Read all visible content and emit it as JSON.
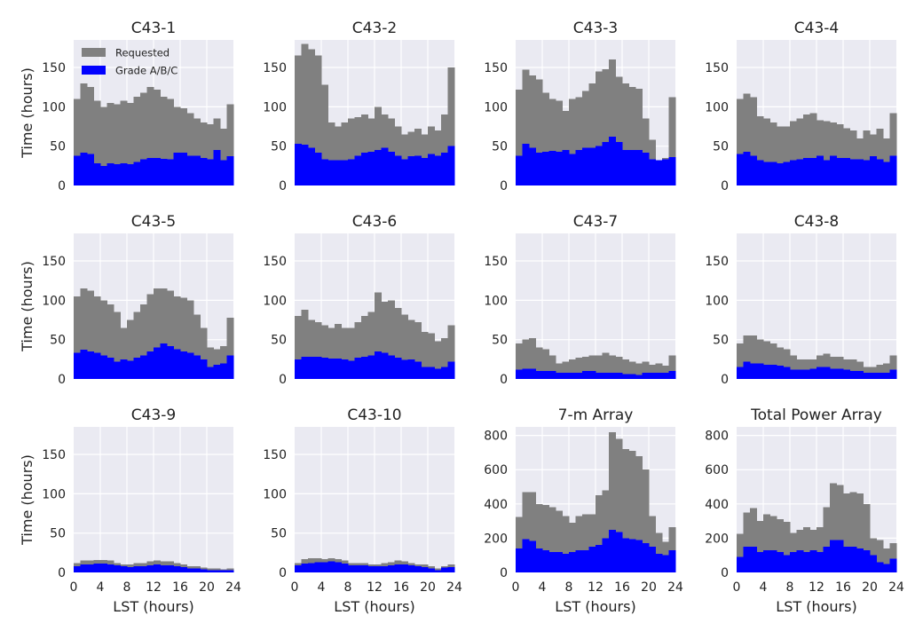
{
  "colors": {
    "requested": "#808080",
    "granted": "#0000ff",
    "axes_bg": "#eaeaf2",
    "grid": "#ffffff"
  },
  "chart_data": [
    {
      "type": "bar",
      "title": "C43-1",
      "ylabel": "Time (hours)",
      "xlabel": "",
      "ylim": [
        0,
        185
      ],
      "xlim": [
        0,
        24
      ],
      "bin_hours": 1,
      "yticks": [
        "0",
        "50",
        "100",
        "150"
      ],
      "xticks": [],
      "grid": true,
      "stacked": "overlay",
      "legend": {
        "placement": "top-left",
        "entries": [
          "Requested",
          "Grade A/B/C"
        ]
      },
      "series": [
        {
          "name": "Requested",
          "values": [
            110,
            130,
            125,
            108,
            100,
            105,
            103,
            108,
            105,
            113,
            118,
            125,
            122,
            113,
            110,
            100,
            98,
            92,
            85,
            80,
            78,
            85,
            72,
            103
          ]
        },
        {
          "name": "Grade A/B/C",
          "values": [
            38,
            42,
            40,
            28,
            25,
            28,
            27,
            28,
            27,
            30,
            33,
            35,
            35,
            34,
            33,
            42,
            42,
            38,
            38,
            35,
            33,
            45,
            32,
            37
          ]
        }
      ]
    },
    {
      "type": "bar",
      "title": "C43-2",
      "ylabel": "",
      "xlabel": "",
      "ylim": [
        0,
        185
      ],
      "xlim": [
        0,
        24
      ],
      "bin_hours": 1,
      "yticks": [
        "0",
        "50",
        "100",
        "150"
      ],
      "xticks": [],
      "grid": true,
      "stacked": "overlay",
      "legend": null,
      "series": [
        {
          "name": "Requested",
          "values": [
            165,
            180,
            173,
            165,
            128,
            80,
            75,
            80,
            85,
            87,
            90,
            85,
            100,
            90,
            85,
            75,
            65,
            68,
            72,
            65,
            75,
            70,
            90,
            150
          ]
        },
        {
          "name": "Grade A/B/C",
          "values": [
            53,
            52,
            48,
            42,
            33,
            32,
            32,
            32,
            33,
            38,
            42,
            43,
            45,
            48,
            43,
            38,
            33,
            37,
            38,
            35,
            40,
            38,
            42,
            50
          ]
        }
      ]
    },
    {
      "type": "bar",
      "title": "C43-3",
      "ylabel": "",
      "xlabel": "",
      "ylim": [
        0,
        185
      ],
      "xlim": [
        0,
        24
      ],
      "bin_hours": 1,
      "yticks": [
        "0",
        "50",
        "100",
        "150"
      ],
      "xticks": [],
      "grid": true,
      "stacked": "overlay",
      "legend": null,
      "series": [
        {
          "name": "Requested",
          "values": [
            122,
            147,
            140,
            135,
            118,
            110,
            108,
            95,
            110,
            112,
            120,
            130,
            145,
            148,
            160,
            138,
            130,
            125,
            123,
            85,
            58,
            25,
            35,
            112
          ]
        },
        {
          "name": "Grade A/B/C",
          "values": [
            38,
            53,
            48,
            42,
            43,
            44,
            43,
            45,
            40,
            45,
            48,
            48,
            50,
            55,
            62,
            55,
            45,
            45,
            45,
            42,
            33,
            32,
            33,
            36
          ]
        }
      ]
    },
    {
      "type": "bar",
      "title": "C43-4",
      "ylabel": "",
      "xlabel": "",
      "ylim": [
        0,
        185
      ],
      "xlim": [
        0,
        24
      ],
      "bin_hours": 1,
      "yticks": [
        "0",
        "50",
        "100",
        "150"
      ],
      "xticks": [],
      "grid": true,
      "stacked": "overlay",
      "legend": null,
      "series": [
        {
          "name": "Requested",
          "values": [
            110,
            117,
            112,
            88,
            85,
            80,
            75,
            75,
            82,
            85,
            90,
            92,
            83,
            82,
            80,
            78,
            73,
            70,
            60,
            70,
            65,
            72,
            60,
            92
          ]
        },
        {
          "name": "Grade A/B/C",
          "values": [
            40,
            43,
            38,
            32,
            30,
            30,
            28,
            30,
            32,
            33,
            35,
            35,
            38,
            32,
            38,
            35,
            35,
            33,
            33,
            32,
            37,
            33,
            30,
            38
          ]
        }
      ]
    },
    {
      "type": "bar",
      "title": "C43-5",
      "ylabel": "Time (hours)",
      "xlabel": "",
      "ylim": [
        0,
        185
      ],
      "xlim": [
        0,
        24
      ],
      "bin_hours": 1,
      "yticks": [
        "0",
        "50",
        "100",
        "150"
      ],
      "xticks": [],
      "grid": true,
      "stacked": "overlay",
      "legend": null,
      "series": [
        {
          "name": "Requested",
          "values": [
            105,
            115,
            112,
            105,
            100,
            95,
            85,
            65,
            75,
            85,
            95,
            108,
            115,
            115,
            112,
            105,
            103,
            100,
            82,
            65,
            40,
            38,
            42,
            78
          ]
        },
        {
          "name": "Grade A/B/C",
          "values": [
            33,
            37,
            35,
            33,
            30,
            27,
            22,
            25,
            23,
            27,
            30,
            35,
            40,
            45,
            42,
            38,
            35,
            33,
            30,
            25,
            15,
            18,
            20,
            30
          ]
        }
      ]
    },
    {
      "type": "bar",
      "title": "C43-6",
      "ylabel": "",
      "xlabel": "",
      "ylim": [
        0,
        185
      ],
      "xlim": [
        0,
        24
      ],
      "bin_hours": 1,
      "yticks": [
        "0",
        "50",
        "100",
        "150"
      ],
      "xticks": [],
      "grid": true,
      "stacked": "overlay",
      "legend": null,
      "series": [
        {
          "name": "Requested",
          "values": [
            80,
            88,
            75,
            72,
            68,
            65,
            70,
            65,
            65,
            72,
            80,
            85,
            110,
            98,
            100,
            90,
            82,
            75,
            72,
            60,
            58,
            48,
            52,
            68
          ]
        },
        {
          "name": "Grade A/B/C",
          "values": [
            25,
            28,
            28,
            28,
            27,
            26,
            26,
            25,
            23,
            27,
            28,
            30,
            35,
            33,
            30,
            27,
            24,
            25,
            22,
            15,
            15,
            13,
            15,
            22
          ]
        }
      ]
    },
    {
      "type": "bar",
      "title": "C43-7",
      "ylabel": "",
      "xlabel": "",
      "ylim": [
        0,
        185
      ],
      "xlim": [
        0,
        24
      ],
      "bin_hours": 1,
      "yticks": [
        "0",
        "50",
        "100",
        "150"
      ],
      "xticks": [],
      "grid": true,
      "stacked": "overlay",
      "legend": null,
      "series": [
        {
          "name": "Requested",
          "values": [
            45,
            50,
            52,
            40,
            38,
            30,
            20,
            22,
            25,
            27,
            28,
            30,
            30,
            33,
            30,
            28,
            25,
            22,
            20,
            22,
            18,
            20,
            17,
            30
          ]
        },
        {
          "name": "Grade A/B/C",
          "values": [
            12,
            13,
            13,
            10,
            10,
            10,
            8,
            8,
            8,
            8,
            10,
            10,
            8,
            8,
            8,
            8,
            6,
            6,
            5,
            8,
            8,
            8,
            8,
            10
          ]
        }
      ]
    },
    {
      "type": "bar",
      "title": "C43-8",
      "ylabel": "",
      "xlabel": "",
      "ylim": [
        0,
        185
      ],
      "xlim": [
        0,
        24
      ],
      "bin_hours": 1,
      "yticks": [
        "0",
        "50",
        "100",
        "150"
      ],
      "xticks": [],
      "grid": true,
      "stacked": "overlay",
      "legend": null,
      "series": [
        {
          "name": "Requested",
          "values": [
            45,
            55,
            55,
            50,
            48,
            45,
            40,
            38,
            30,
            25,
            25,
            25,
            30,
            32,
            28,
            28,
            25,
            25,
            22,
            15,
            15,
            18,
            20,
            30
          ]
        },
        {
          "name": "Grade A/B/C",
          "values": [
            15,
            22,
            20,
            20,
            18,
            18,
            17,
            15,
            12,
            12,
            12,
            13,
            15,
            15,
            13,
            13,
            12,
            10,
            10,
            8,
            8,
            8,
            8,
            12
          ]
        }
      ]
    },
    {
      "type": "bar",
      "title": "C43-9",
      "ylabel": "Time (hours)",
      "xlabel": "LST  (hours)",
      "ylim": [
        0,
        185
      ],
      "xlim": [
        0,
        24
      ],
      "bin_hours": 1,
      "yticks": [
        "0",
        "50",
        "100",
        "150"
      ],
      "xticks": [
        "0",
        "4",
        "8",
        "12",
        "16",
        "20",
        "24"
      ],
      "grid": true,
      "stacked": "overlay",
      "legend": null,
      "series": [
        {
          "name": "Requested",
          "values": [
            12,
            15,
            15,
            16,
            16,
            15,
            12,
            10,
            10,
            12,
            12,
            14,
            15,
            14,
            14,
            12,
            10,
            8,
            8,
            6,
            5,
            5,
            4,
            5
          ]
        },
        {
          "name": "Grade A/B/C",
          "values": [
            8,
            10,
            10,
            11,
            11,
            10,
            9,
            8,
            7,
            8,
            8,
            9,
            10,
            9,
            9,
            8,
            7,
            5,
            5,
            4,
            3,
            3,
            3,
            3
          ]
        }
      ]
    },
    {
      "type": "bar",
      "title": "C43-10",
      "ylabel": "",
      "xlabel": "LST  (hours)",
      "ylim": [
        0,
        185
      ],
      "xlim": [
        0,
        24
      ],
      "bin_hours": 1,
      "yticks": [
        "0",
        "50",
        "100",
        "150"
      ],
      "xticks": [
        "0",
        "4",
        "8",
        "12",
        "16",
        "20",
        "24"
      ],
      "grid": true,
      "stacked": "overlay",
      "legend": null,
      "series": [
        {
          "name": "Requested",
          "values": [
            12,
            17,
            18,
            18,
            17,
            18,
            17,
            15,
            12,
            12,
            12,
            10,
            10,
            12,
            13,
            15,
            14,
            12,
            10,
            10,
            8,
            5,
            8,
            10
          ]
        },
        {
          "name": "Grade A/B/C",
          "values": [
            9,
            11,
            12,
            13,
            13,
            14,
            13,
            11,
            9,
            9,
            9,
            8,
            8,
            8,
            9,
            10,
            10,
            9,
            8,
            7,
            5,
            3,
            6,
            7
          ]
        }
      ]
    },
    {
      "type": "bar",
      "title": "7-m Array",
      "ylabel": "",
      "xlabel": "LST  (hours)",
      "ylim": [
        0,
        850
      ],
      "xlim": [
        0,
        24
      ],
      "bin_hours": 1,
      "yticks": [
        "0",
        "200",
        "400",
        "600",
        "800"
      ],
      "xticks": [
        "0",
        "4",
        "8",
        "12",
        "16",
        "20",
        "24"
      ],
      "grid": true,
      "stacked": "overlay",
      "legend": null,
      "series": [
        {
          "name": "Requested",
          "values": [
            325,
            470,
            470,
            400,
            395,
            380,
            360,
            330,
            290,
            330,
            340,
            340,
            450,
            480,
            820,
            780,
            720,
            710,
            680,
            600,
            330,
            230,
            180,
            265
          ]
        },
        {
          "name": "Grade A/B/C",
          "values": [
            140,
            195,
            185,
            140,
            130,
            120,
            120,
            110,
            120,
            130,
            130,
            150,
            160,
            200,
            250,
            235,
            200,
            195,
            190,
            170,
            150,
            110,
            100,
            130
          ]
        }
      ]
    },
    {
      "type": "bar",
      "title": "Total Power Array",
      "ylabel": "",
      "xlabel": "LST  (hours)",
      "ylim": [
        0,
        850
      ],
      "xlim": [
        0,
        24
      ],
      "bin_hours": 1,
      "yticks": [
        "0",
        "200",
        "400",
        "600",
        "800"
      ],
      "xticks": [
        "0",
        "4",
        "8",
        "12",
        "16",
        "20",
        "24"
      ],
      "grid": true,
      "stacked": "overlay",
      "legend": null,
      "series": [
        {
          "name": "Requested",
          "values": [
            225,
            350,
            375,
            300,
            340,
            330,
            310,
            295,
            230,
            250,
            265,
            250,
            265,
            380,
            520,
            510,
            460,
            470,
            460,
            400,
            200,
            190,
            140,
            170
          ]
        },
        {
          "name": "Grade A/B/C",
          "values": [
            90,
            150,
            150,
            120,
            130,
            130,
            120,
            100,
            120,
            130,
            120,
            130,
            120,
            150,
            190,
            190,
            150,
            150,
            140,
            130,
            100,
            60,
            50,
            80
          ]
        }
      ]
    }
  ]
}
